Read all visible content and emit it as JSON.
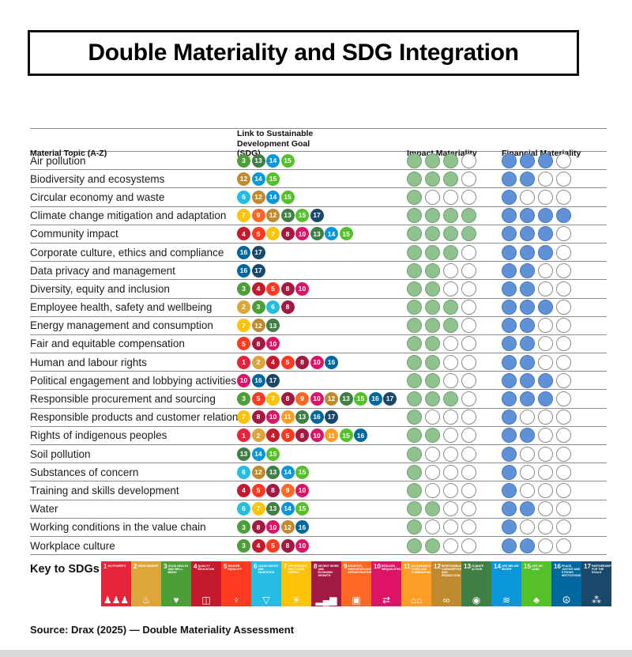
{
  "page": {
    "title": "Double Materiality and SDG Integration",
    "source": "Source: Drax (2025) — Double Materiality Assessment"
  },
  "table_headers": {
    "topic": "Material Topic (A-Z)",
    "sdg": "Link to Sustainable Development Goal (SDG)",
    "impact": "Impact Materiality",
    "financial": "Financial Materiality"
  },
  "chart_data": {
    "type": "table",
    "title": "Double Materiality and SDG Integration",
    "columns": [
      "Material Topic (A-Z)",
      "Link to Sustainable Development Goal (SDG)",
      "Impact Materiality",
      "Financial Materiality"
    ],
    "rating_scale_max": 4,
    "rows": [
      {
        "topic": "Air pollution",
        "sdgs": [
          3,
          13,
          14,
          15
        ],
        "impact": 3,
        "financial": 3
      },
      {
        "topic": "Biodiversity and ecosystems",
        "sdgs": [
          12,
          14,
          15
        ],
        "impact": 3,
        "financial": 2
      },
      {
        "topic": "Circular economy and waste",
        "sdgs": [
          6,
          12,
          14,
          15
        ],
        "impact": 1,
        "financial": 1
      },
      {
        "topic": "Climate change mitigation and adaptation",
        "sdgs": [
          7,
          9,
          12,
          13,
          15,
          17
        ],
        "impact": 4,
        "financial": 4
      },
      {
        "topic": "Community impact",
        "sdgs": [
          4,
          5,
          7,
          8,
          10,
          13,
          14,
          15
        ],
        "impact": 4,
        "financial": 3
      },
      {
        "topic": "Corporate culture, ethics and compliance",
        "sdgs": [
          16,
          17
        ],
        "impact": 3,
        "financial": 3
      },
      {
        "topic": "Data privacy and management",
        "sdgs": [
          16,
          17
        ],
        "impact": 2,
        "financial": 2
      },
      {
        "topic": "Diversity, equity and inclusion",
        "sdgs": [
          3,
          4,
          5,
          8,
          10
        ],
        "impact": 2,
        "financial": 2
      },
      {
        "topic": "Employee health, safety and wellbeing",
        "sdgs": [
          2,
          3,
          6,
          8
        ],
        "impact": 3,
        "financial": 3
      },
      {
        "topic": "Energy management and consumption",
        "sdgs": [
          7,
          12,
          13
        ],
        "impact": 3,
        "financial": 2
      },
      {
        "topic": "Fair and equitable compensation",
        "sdgs": [
          5,
          8,
          10
        ],
        "impact": 2,
        "financial": 2
      },
      {
        "topic": "Human and labour rights",
        "sdgs": [
          1,
          2,
          4,
          5,
          8,
          10,
          16
        ],
        "impact": 2,
        "financial": 2
      },
      {
        "topic": "Political engagement and lobbying activities",
        "sdgs": [
          10,
          16,
          17
        ],
        "impact": 2,
        "financial": 3
      },
      {
        "topic": "Responsible procurement and sourcing",
        "sdgs": [
          3,
          5,
          7,
          8,
          9,
          10,
          12,
          13,
          15,
          16,
          17
        ],
        "impact": 3,
        "financial": 3
      },
      {
        "topic": "Responsible products and customer relations",
        "sdgs": [
          7,
          8,
          10,
          11,
          13,
          16,
          17
        ],
        "impact": 1,
        "financial": 1
      },
      {
        "topic": "Rights of indigenous peoples",
        "sdgs": [
          1,
          2,
          4,
          5,
          8,
          10,
          11,
          15,
          16
        ],
        "impact": 2,
        "financial": 2
      },
      {
        "topic": "Soil pollution",
        "sdgs": [
          13,
          14,
          15
        ],
        "impact": 1,
        "financial": 1
      },
      {
        "topic": "Substances of concern",
        "sdgs": [
          6,
          12,
          13,
          14,
          15
        ],
        "impact": 1,
        "financial": 1
      },
      {
        "topic": "Training and skills development",
        "sdgs": [
          4,
          5,
          8,
          9,
          10
        ],
        "impact": 1,
        "financial": 1
      },
      {
        "topic": "Water",
        "sdgs": [
          6,
          7,
          13,
          14,
          15
        ],
        "impact": 2,
        "financial": 2
      },
      {
        "topic": "Working conditions in the value chain",
        "sdgs": [
          3,
          8,
          10,
          12,
          16
        ],
        "impact": 1,
        "financial": 1
      },
      {
        "topic": "Workplace culture",
        "sdgs": [
          3,
          4,
          5,
          8,
          10
        ],
        "impact": 2,
        "financial": 2
      }
    ]
  },
  "colors": {
    "impact_fill": "#8FC28F",
    "impact_border": "#6FA26F",
    "financial_fill": "#6090D6",
    "financial_border": "#4A77BE",
    "empty_fill": "#FFFFFF",
    "empty_border": "#8A8A8A",
    "sdg": {
      "1": "#E5243B",
      "2": "#DDA63A",
      "3": "#4C9F38",
      "4": "#C5192D",
      "5": "#FF3A21",
      "6": "#26BDE2",
      "7": "#FCC30B",
      "8": "#A21942",
      "9": "#FD6925",
      "10": "#DD1367",
      "11": "#FD9D24",
      "12": "#BF8B2E",
      "13": "#3F7E44",
      "14": "#0A97D9",
      "15": "#56C02B",
      "16": "#00689D",
      "17": "#19486A"
    }
  },
  "key": {
    "label": "Key to SDGs",
    "goals": [
      {
        "num": 1,
        "name": "No Poverty",
        "icon": "people-icon"
      },
      {
        "num": 2,
        "name": "Zero Hunger",
        "icon": "bowl-icon"
      },
      {
        "num": 3,
        "name": "Good Health and Well-Being",
        "icon": "heartbeat-icon"
      },
      {
        "num": 4,
        "name": "Quality Education",
        "icon": "book-icon"
      },
      {
        "num": 5,
        "name": "Gender Equality",
        "icon": "gender-icon"
      },
      {
        "num": 6,
        "name": "Clean Water and Sanitation",
        "icon": "water-drop-icon"
      },
      {
        "num": 7,
        "name": "Affordable and Clean Energy",
        "icon": "sun-icon"
      },
      {
        "num": 8,
        "name": "Decent Work and Economic Growth",
        "icon": "growth-chart-icon"
      },
      {
        "num": 9,
        "name": "Industry, Innovation and Infrastructure",
        "icon": "blocks-icon"
      },
      {
        "num": 10,
        "name": "Reduced Inequalities",
        "icon": "equality-arrows-icon"
      },
      {
        "num": 11,
        "name": "Sustainable Cities and Communities",
        "icon": "buildings-icon"
      },
      {
        "num": 12,
        "name": "Responsible Consumption and Production",
        "icon": "infinity-icon"
      },
      {
        "num": 13,
        "name": "Climate Action",
        "icon": "eye-icon"
      },
      {
        "num": 14,
        "name": "Life Below Water",
        "icon": "fish-icon"
      },
      {
        "num": 15,
        "name": "Life on Land",
        "icon": "tree-icon"
      },
      {
        "num": 16,
        "name": "Peace, Justice and Strong Institutions",
        "icon": "dove-icon"
      },
      {
        "num": 17,
        "name": "Partnerships for the Goals",
        "icon": "circles-icon"
      }
    ]
  }
}
